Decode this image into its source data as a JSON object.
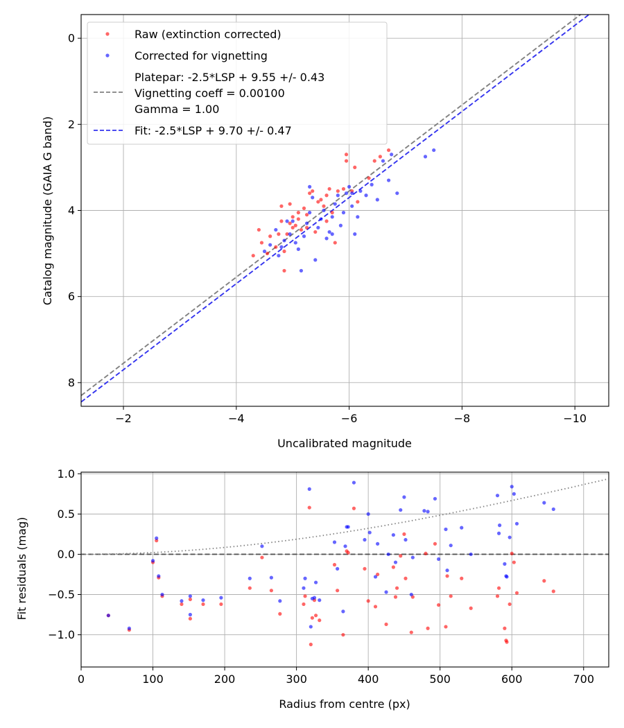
{
  "chart_data": [
    {
      "type": "scatter",
      "xlabel": "Uncalibrated magnitude",
      "ylabel": "Catalog magnitude (GAIA G band)",
      "xlim": [
        -1.25,
        -10.6
      ],
      "ylim": [
        8.55,
        -0.55
      ],
      "x_inverted": true,
      "y_inverted": true,
      "xticks": [
        -2,
        -4,
        -6,
        -8,
        -10
      ],
      "xtick_labels": [
        "−2",
        "−4",
        "−6",
        "−8",
        "−10"
      ],
      "yticks": [
        0,
        2,
        4,
        6,
        8
      ],
      "ytick_labels": [
        "0",
        "2",
        "4",
        "6",
        "8"
      ],
      "grid": true,
      "legend_position": "top-left",
      "series": [
        {
          "name": "Raw (extinction corrected)",
          "kind": "scatter",
          "color": "#ff0000",
          "points": [
            [
              -4.3,
              5.05
            ],
            [
              -4.4,
              4.45
            ],
            [
              -4.45,
              4.75
            ],
            [
              -4.55,
              5.0
            ],
            [
              -4.6,
              4.6
            ],
            [
              -4.7,
              4.85
            ],
            [
              -4.75,
              4.55
            ],
            [
              -4.8,
              4.25
            ],
            [
              -4.85,
              4.95
            ],
            [
              -4.85,
              5.4
            ],
            [
              -4.9,
              4.55
            ],
            [
              -4.95,
              4.3
            ],
            [
              -5.0,
              4.4
            ],
            [
              -5.05,
              4.35
            ],
            [
              -5.1,
              4.2
            ],
            [
              -5.1,
              4.05
            ],
            [
              -5.15,
              4.45
            ],
            [
              -5.2,
              3.95
            ],
            [
              -5.25,
              4.1
            ],
            [
              -5.3,
              3.6
            ],
            [
              -5.35,
              3.55
            ],
            [
              -5.4,
              4.5
            ],
            [
              -5.45,
              3.8
            ],
            [
              -5.5,
              3.75
            ],
            [
              -5.55,
              3.9
            ],
            [
              -5.6,
              3.65
            ],
            [
              -5.65,
              3.5
            ],
            [
              -5.7,
              4.05
            ],
            [
              -5.75,
              4.75
            ],
            [
              -5.8,
              3.55
            ],
            [
              -5.9,
              3.5
            ],
            [
              -5.95,
              2.7
            ],
            [
              -5.95,
              2.85
            ],
            [
              -6.05,
              3.55
            ],
            [
              -6.1,
              3.0
            ],
            [
              -6.15,
              3.8
            ],
            [
              -6.35,
              3.25
            ],
            [
              -6.45,
              2.85
            ],
            [
              -6.55,
              2.75
            ],
            [
              -6.7,
              2.6
            ],
            [
              -4.95,
              3.85
            ],
            [
              -5.0,
              4.15
            ],
            [
              -4.8,
              3.9
            ],
            [
              -5.25,
              4.4
            ],
            [
              -5.6,
              4.25
            ]
          ]
        },
        {
          "name": "Corrected for vignetting",
          "kind": "scatter",
          "color": "#0000ff",
          "points": [
            [
              -4.5,
              4.95
            ],
            [
              -4.6,
              4.8
            ],
            [
              -4.75,
              5.05
            ],
            [
              -4.8,
              4.85
            ],
            [
              -4.85,
              4.7
            ],
            [
              -4.95,
              4.55
            ],
            [
              -5.0,
              4.25
            ],
            [
              -5.05,
              4.75
            ],
            [
              -5.15,
              5.4
            ],
            [
              -5.2,
              4.6
            ],
            [
              -5.25,
              4.3
            ],
            [
              -5.3,
              4.05
            ],
            [
              -5.4,
              5.15
            ],
            [
              -5.45,
              4.4
            ],
            [
              -5.5,
              4.2
            ],
            [
              -5.55,
              4.0
            ],
            [
              -5.6,
              4.65
            ],
            [
              -5.65,
              4.5
            ],
            [
              -5.7,
              4.15
            ],
            [
              -5.75,
              3.85
            ],
            [
              -5.8,
              3.65
            ],
            [
              -5.85,
              4.35
            ],
            [
              -5.9,
              4.05
            ],
            [
              -5.95,
              3.6
            ],
            [
              -6.0,
              3.45
            ],
            [
              -6.05,
              3.9
            ],
            [
              -6.1,
              4.55
            ],
            [
              -6.15,
              4.15
            ],
            [
              -6.2,
              3.55
            ],
            [
              -6.3,
              3.65
            ],
            [
              -6.4,
              3.4
            ],
            [
              -6.5,
              3.75
            ],
            [
              -6.6,
              2.85
            ],
            [
              -6.7,
              3.3
            ],
            [
              -6.75,
              2.7
            ],
            [
              -6.85,
              3.6
            ],
            [
              -7.35,
              2.75
            ],
            [
              -7.5,
              2.6
            ],
            [
              -4.9,
              4.25
            ],
            [
              -5.3,
              3.45
            ],
            [
              -5.35,
              3.7
            ],
            [
              -4.7,
              4.45
            ],
            [
              -5.1,
              4.9
            ],
            [
              -5.7,
              4.55
            ],
            [
              -6.05,
              3.6
            ]
          ]
        },
        {
          "name": "Platepar: -2.5*LSP + 9.55 +/- 0.43\nVignetting coeff = 0.00100\nGamma = 1.00",
          "kind": "dashed-line",
          "color": "#808080",
          "slope": 1,
          "intercept": 9.55
        },
        {
          "name": "Fit: -2.5*LSP + 9.70 +/- 0.47",
          "kind": "dashed-line",
          "color": "#3333ee",
          "slope": 1,
          "intercept": 9.7
        }
      ],
      "legend_lines": [
        [
          "Raw (extinction corrected)"
        ],
        [
          "Corrected for vignetting"
        ],
        [
          "Platepar: -2.5*LSP + 9.55 +/- 0.43",
          "Vignetting coeff = 0.00100",
          "Gamma = 1.00"
        ],
        [
          "Fit: -2.5*LSP + 9.70 +/- 0.47"
        ]
      ]
    },
    {
      "type": "scatter",
      "xlabel": "Radius from centre (px)",
      "ylabel": "Fit residuals (mag)",
      "xlim": [
        0,
        735
      ],
      "ylim": [
        -1.4,
        1.02
      ],
      "xticks": [
        0,
        100,
        200,
        300,
        400,
        500,
        600,
        700
      ],
      "xtick_labels": [
        "0",
        "100",
        "200",
        "300",
        "400",
        "500",
        "600",
        "700"
      ],
      "yticks": [
        1.0,
        0.5,
        0.0,
        -0.5,
        -1.0
      ],
      "ytick_labels": [
        "1.0",
        "0.5",
        "0.0",
        "−0.5",
        "−1.0"
      ],
      "grid": true,
      "series": [
        {
          "name": "Raw",
          "kind": "scatter",
          "color": "#ff0000",
          "points": [
            [
              38,
              -0.76
            ],
            [
              67,
              -0.94
            ],
            [
              100,
              -0.1
            ],
            [
              105,
              0.17
            ],
            [
              108,
              -0.29
            ],
            [
              113,
              -0.52
            ],
            [
              140,
              -0.62
            ],
            [
              152,
              -0.56
            ],
            [
              152,
              -0.8
            ],
            [
              170,
              -0.62
            ],
            [
              195,
              -0.62
            ],
            [
              235,
              -0.42
            ],
            [
              252,
              -0.04
            ],
            [
              265,
              -0.45
            ],
            [
              277,
              -0.74
            ],
            [
              310,
              -0.62
            ],
            [
              312,
              -0.52
            ],
            [
              318,
              0.58
            ],
            [
              320,
              -1.12
            ],
            [
              322,
              -0.79
            ],
            [
              325,
              -0.57
            ],
            [
              327,
              -0.76
            ],
            [
              332,
              -0.82
            ],
            [
              353,
              -0.13
            ],
            [
              357,
              -0.45
            ],
            [
              365,
              -1.0
            ],
            [
              370,
              0.04
            ],
            [
              372,
              0.02
            ],
            [
              380,
              0.57
            ],
            [
              395,
              -0.18
            ],
            [
              400,
              -0.58
            ],
            [
              410,
              -0.65
            ],
            [
              413,
              -0.25
            ],
            [
              425,
              -0.87
            ],
            [
              435,
              -0.16
            ],
            [
              438,
              -0.53
            ],
            [
              440,
              -0.42
            ],
            [
              445,
              -0.02
            ],
            [
              450,
              0.25
            ],
            [
              452,
              -0.3
            ],
            [
              460,
              -0.97
            ],
            [
              462,
              -0.53
            ],
            [
              480,
              0.01
            ],
            [
              483,
              -0.92
            ],
            [
              493,
              0.13
            ],
            [
              498,
              -0.63
            ],
            [
              508,
              -0.9
            ],
            [
              510,
              -0.27
            ],
            [
              515,
              -0.52
            ],
            [
              530,
              -0.3
            ],
            [
              543,
              -0.67
            ],
            [
              580,
              -0.52
            ],
            [
              582,
              -0.42
            ],
            [
              590,
              -0.92
            ],
            [
              592,
              -1.07
            ],
            [
              593,
              -1.09
            ],
            [
              597,
              -0.62
            ],
            [
              600,
              0.01
            ],
            [
              603,
              -0.1
            ],
            [
              607,
              -0.48
            ],
            [
              645,
              -0.33
            ],
            [
              658,
              -0.46
            ]
          ]
        },
        {
          "name": "Corrected",
          "kind": "scatter",
          "color": "#0000ff",
          "points": [
            [
              38,
              -0.76
            ],
            [
              67,
              -0.92
            ],
            [
              100,
              -0.08
            ],
            [
              105,
              0.2
            ],
            [
              108,
              -0.27
            ],
            [
              113,
              -0.5
            ],
            [
              140,
              -0.58
            ],
            [
              152,
              -0.52
            ],
            [
              152,
              -0.75
            ],
            [
              170,
              -0.57
            ],
            [
              195,
              -0.54
            ],
            [
              235,
              -0.3
            ],
            [
              252,
              0.1
            ],
            [
              265,
              -0.29
            ],
            [
              277,
              -0.58
            ],
            [
              310,
              -0.42
            ],
            [
              312,
              -0.3
            ],
            [
              318,
              0.81
            ],
            [
              320,
              -0.9
            ],
            [
              322,
              -0.55
            ],
            [
              325,
              -0.54
            ],
            [
              327,
              -0.35
            ],
            [
              332,
              -0.57
            ],
            [
              353,
              0.15
            ],
            [
              357,
              -0.18
            ],
            [
              365,
              -0.71
            ],
            [
              368,
              0.1
            ],
            [
              370,
              0.34
            ],
            [
              372,
              0.34
            ],
            [
              380,
              0.89
            ],
            [
              395,
              0.18
            ],
            [
              400,
              0.5
            ],
            [
              402,
              0.27
            ],
            [
              410,
              -0.28
            ],
            [
              413,
              0.13
            ],
            [
              425,
              -0.47
            ],
            [
              428,
              0.0
            ],
            [
              435,
              0.24
            ],
            [
              438,
              -0.1
            ],
            [
              445,
              0.55
            ],
            [
              450,
              0.71
            ],
            [
              452,
              0.18
            ],
            [
              460,
              -0.5
            ],
            [
              462,
              -0.04
            ],
            [
              478,
              0.54
            ],
            [
              483,
              0.53
            ],
            [
              493,
              0.69
            ],
            [
              498,
              -0.06
            ],
            [
              508,
              0.31
            ],
            [
              510,
              -0.2
            ],
            [
              515,
              0.11
            ],
            [
              530,
              0.33
            ],
            [
              543,
              0.0
            ],
            [
              580,
              0.73
            ],
            [
              582,
              0.26
            ],
            [
              583,
              0.36
            ],
            [
              590,
              -0.12
            ],
            [
              592,
              -0.27
            ],
            [
              593,
              -0.28
            ],
            [
              597,
              0.21
            ],
            [
              600,
              0.84
            ],
            [
              603,
              0.75
            ],
            [
              607,
              0.38
            ],
            [
              645,
              0.64
            ],
            [
              658,
              0.56
            ]
          ]
        },
        {
          "name": "Zero line",
          "kind": "dashed-line",
          "color": "#404040",
          "value": 0
        },
        {
          "name": "Vignetting model",
          "kind": "dotted-curve",
          "color": "#808080",
          "model": "-2.5*log10(cos(atan(0.001*r))^4)"
        }
      ]
    }
  ]
}
